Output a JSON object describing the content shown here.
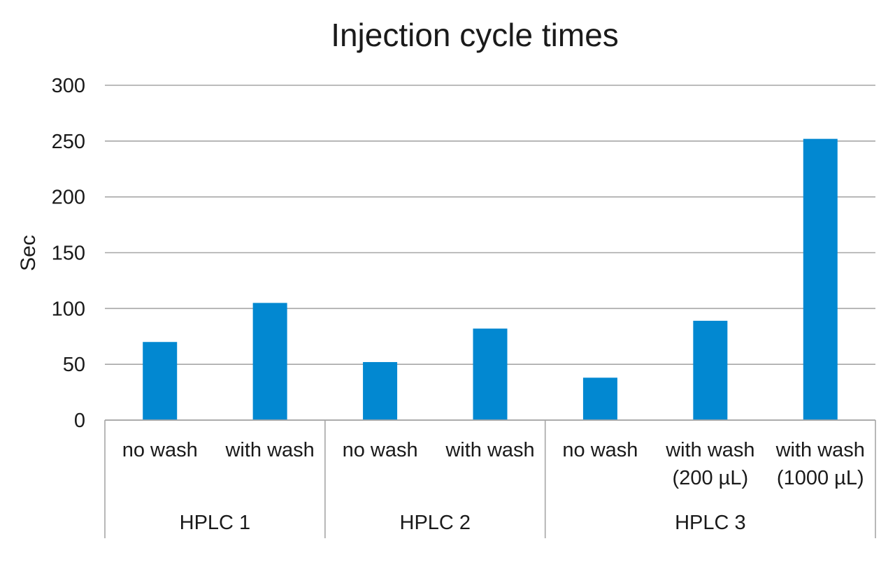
{
  "chart_data": {
    "type": "bar",
    "title": "Injection cycle times",
    "xlabel": "",
    "ylabel": "Sec",
    "ylim": [
      0,
      300
    ],
    "yticks": [
      0,
      50,
      100,
      150,
      200,
      250,
      300
    ],
    "grid": true,
    "colors": {
      "bar": "#0288d1",
      "grid": "#a6a6a6",
      "axis": "#a6a6a6"
    },
    "groups": [
      {
        "label": "HPLC 1",
        "categories": [
          {
            "label": [
              "no wash"
            ],
            "value": 70
          },
          {
            "label": [
              "with wash"
            ],
            "value": 105
          }
        ]
      },
      {
        "label": "HPLC 2",
        "categories": [
          {
            "label": [
              "no wash"
            ],
            "value": 52
          },
          {
            "label": [
              "with wash"
            ],
            "value": 82
          }
        ]
      },
      {
        "label": "HPLC 3",
        "categories": [
          {
            "label": [
              "no wash"
            ],
            "value": 38
          },
          {
            "label": [
              "with wash",
              "(200 µL)"
            ],
            "value": 89
          },
          {
            "label": [
              "with wash",
              "(1000 µL)"
            ],
            "value": 252
          }
        ]
      }
    ]
  }
}
